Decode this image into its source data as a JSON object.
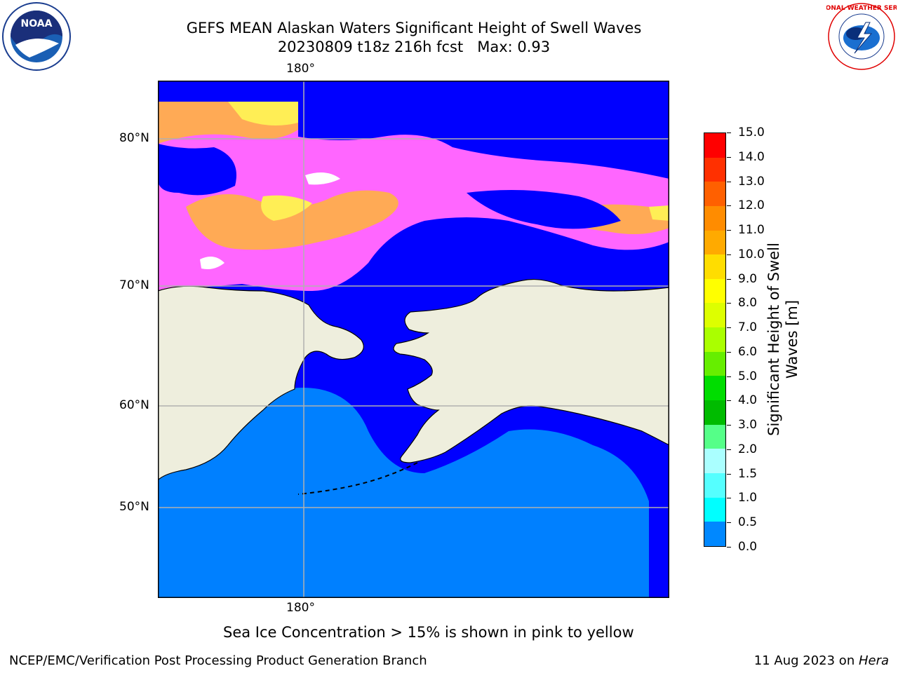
{
  "header": {
    "title_line1": "GEFS MEAN Alaskan Waters Significant Height of Swell Waves",
    "title_line2": "20230809 t18z 216h fcst   Max: 0.93",
    "left_logo_text": "NOAA",
    "right_logo_text": "NATIONAL WEATHER SERVICE"
  },
  "map": {
    "lon_label_top": "180°",
    "lon_label_bottom": "180°",
    "lat_labels": [
      "80°N",
      "70°N",
      "60°N",
      "50°N"
    ],
    "colors": {
      "ocean_low": "#0000ff",
      "ocean_mid": "#0080ff",
      "land": "#eeeedd",
      "ice_pink": "#ff66ff",
      "ice_orange": "#ffaa55",
      "ice_yellow": "#ffee55",
      "grid": "#b0b0b0"
    }
  },
  "colorbar": {
    "label": "Significant Height of Swell Waves [m]",
    "ticks": [
      "15.0",
      "14.0",
      "13.0",
      "12.0",
      "11.0",
      "10.0",
      "9.0",
      "8.0",
      "7.0",
      "6.0",
      "5.0",
      "4.0",
      "3.0",
      "2.0",
      "1.5",
      "1.0",
      "0.5",
      "0.0"
    ],
    "colors": [
      "#ff0000",
      "#ff3000",
      "#ff6000",
      "#ff8c00",
      "#ffaa00",
      "#ffdd00",
      "#ffff00",
      "#ddff00",
      "#aaff00",
      "#66ee00",
      "#00dd00",
      "#00bb00",
      "#55ff88",
      "#aaffff",
      "#55ffff",
      "#00ffff",
      "#0088ff",
      "#0000ff"
    ]
  },
  "caption": "Sea Ice Concentration > 15% is shown in pink to yellow",
  "footer": {
    "left": "NCEP/EMC/Verification Post Processing Product Generation Branch",
    "right_date": "11 Aug 2023 on ",
    "right_host": "Hera"
  }
}
